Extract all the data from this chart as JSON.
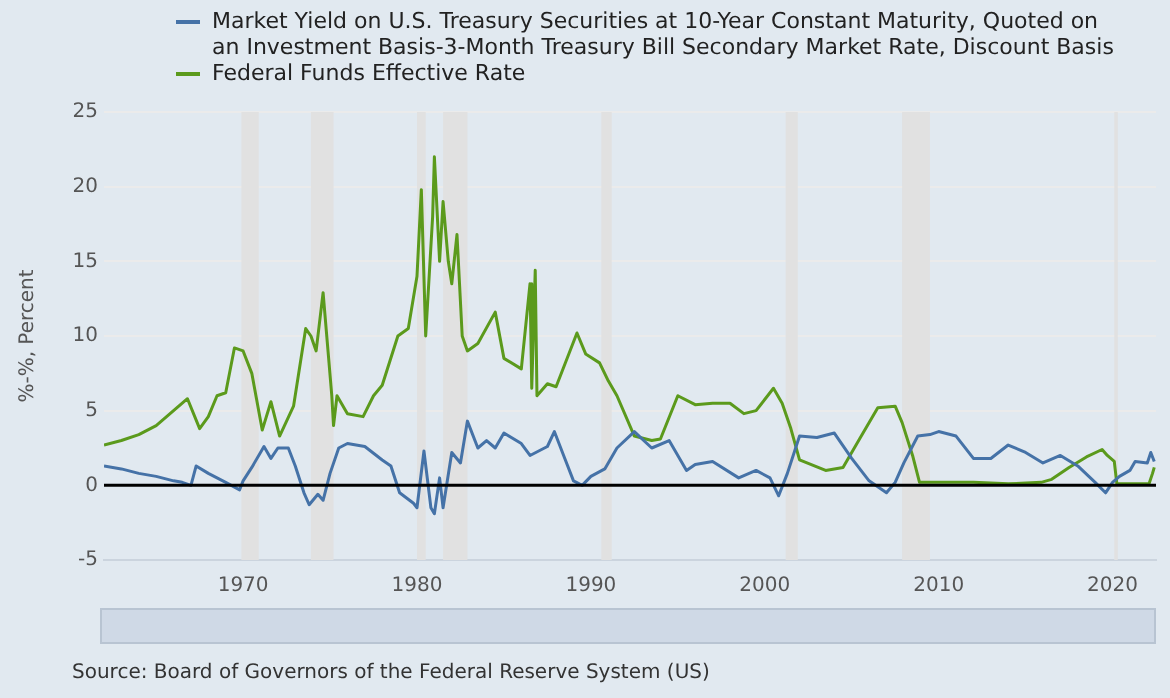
{
  "chart_data": {
    "type": "line",
    "ylabel": "%-%, Percent",
    "xlim": [
      1962,
      2022.5
    ],
    "xticks": [
      1970,
      1980,
      1990,
      2000,
      2010,
      2020
    ],
    "ylim": [
      -5,
      25
    ],
    "yticks": [
      -5,
      0,
      5,
      10,
      15,
      20,
      25
    ],
    "grid": "y",
    "legend": "top left",
    "marker": "none",
    "line_style": "solid",
    "series": [
      {
        "name": "Market Yield on U.S. Treasury Securities at 10-Year Constant Maturity, Quoted on an Investment Basis-3-Month Treasury Bill Secondary Market Rate, Discount Basis",
        "color": "#4572a7",
        "x": [
          1962,
          1963,
          1964,
          1965,
          1966,
          1966.5,
          1967,
          1967.3,
          1968,
          1969,
          1969.8,
          1970,
          1970.5,
          1971.2,
          1971.6,
          1972,
          1972.6,
          1973,
          1973.5,
          1973.8,
          1974.3,
          1974.6,
          1975,
          1975.5,
          1976,
          1977,
          1978,
          1978.5,
          1979,
          1979.8,
          1980,
          1980.4,
          1980.8,
          1981,
          1981.3,
          1981.5,
          1982,
          1982.5,
          1982.9,
          1983.5,
          1984,
          1984.5,
          1985,
          1986,
          1986.5,
          1987.5,
          1987.9,
          1988.5,
          1989,
          1989.5,
          1990,
          1990.8,
          1991.5,
          1992.5,
          1993.5,
          1994.5,
          1995.5,
          1996,
          1997,
          1998.5,
          1999.5,
          2000.3,
          2000.8,
          2001.3,
          2002,
          2003,
          2004,
          2005,
          2006,
          2007,
          2007.5,
          2008,
          2008.8,
          2009.5,
          2010,
          2011,
          2012,
          2013,
          2014,
          2015,
          2016,
          2017,
          2018,
          2019,
          2019.6,
          2020,
          2020.4,
          2021,
          2021.3,
          2022,
          2022.2,
          2022.4
        ],
        "values": [
          1.3,
          1.1,
          0.8,
          0.6,
          0.3,
          0.2,
          0.0,
          1.3,
          0.8,
          0.2,
          -0.3,
          0.3,
          1.2,
          2.6,
          1.8,
          2.5,
          2.5,
          1.3,
          -0.5,
          -1.3,
          -0.6,
          -1.0,
          0.8,
          2.5,
          2.8,
          2.6,
          1.7,
          1.3,
          -0.5,
          -1.2,
          -1.5,
          2.3,
          -1.5,
          -1.9,
          0.5,
          -1.5,
          2.2,
          1.5,
          4.3,
          2.5,
          3.0,
          2.5,
          3.5,
          2.8,
          2.0,
          2.6,
          3.6,
          1.8,
          0.3,
          0.0,
          0.6,
          1.1,
          2.5,
          3.6,
          2.5,
          3.0,
          1.0,
          1.4,
          1.6,
          0.5,
          1.0,
          0.5,
          -0.7,
          0.8,
          3.3,
          3.2,
          3.5,
          1.8,
          0.3,
          -0.5,
          0.2,
          1.5,
          3.3,
          3.4,
          3.6,
          3.3,
          1.8,
          1.8,
          2.7,
          2.2,
          1.5,
          2.0,
          1.3,
          0.2,
          -0.5,
          0.2,
          0.6,
          1.0,
          1.6,
          1.5,
          2.2,
          1.6
        ]
      },
      {
        "name": "Federal Funds Effective Rate",
        "color": "#5b9a1c",
        "x": [
          1962,
          1963,
          1964,
          1965,
          1966,
          1966.8,
          1967.5,
          1968,
          1968.5,
          1969,
          1969.5,
          1970,
          1970.5,
          1971.1,
          1971.6,
          1972.1,
          1972.9,
          1973.6,
          1973.9,
          1974.2,
          1974.6,
          1975.1,
          1975.2,
          1975.4,
          1976,
          1976.9,
          1977.5,
          1978,
          1978.9,
          1979.5,
          1980,
          1980.25,
          1980.5,
          1980.9,
          1981,
          1981.3,
          1981.5,
          1981.8,
          1982,
          1982.3,
          1982.6,
          1982.9,
          1983.5,
          1984.5,
          1985,
          1986,
          1986.5,
          1986.6,
          1986.8,
          1986.9,
          1987.5,
          1988,
          1989.2,
          1989.7,
          1990.5,
          1991,
          1991.5,
          1992.5,
          1993.5,
          1994,
          1995,
          1996,
          1997,
          1998,
          1998.8,
          1999.5,
          2000.5,
          2001,
          2001.5,
          2002,
          2003.5,
          2004.5,
          2005.5,
          2006.5,
          2007.5,
          2007.9,
          2008.5,
          2008.9,
          2010,
          2012,
          2014,
          2015.9,
          2016.5,
          2017.5,
          2018.5,
          2019.4,
          2019.7,
          2020.1,
          2020.25,
          2021,
          2022.1,
          2022.3,
          2022.4
        ],
        "values": [
          2.7,
          3.0,
          3.4,
          4.0,
          5.0,
          5.8,
          3.8,
          4.6,
          6.0,
          6.2,
          9.2,
          9.0,
          7.5,
          3.7,
          5.6,
          3.3,
          5.3,
          10.5,
          10.0,
          9.0,
          12.9,
          6.0,
          4.0,
          6.0,
          4.8,
          4.6,
          6.0,
          6.7,
          10.0,
          10.5,
          14.0,
          19.8,
          10.0,
          18.0,
          22.0,
          15.0,
          19.0,
          15.0,
          13.5,
          16.8,
          10.0,
          9.0,
          9.5,
          11.6,
          8.5,
          7.8,
          13.5,
          6.5,
          14.4,
          6.0,
          6.8,
          6.6,
          10.2,
          8.8,
          8.2,
          7.0,
          6.0,
          3.3,
          3.0,
          3.1,
          6.0,
          5.4,
          5.5,
          5.5,
          4.8,
          5.0,
          6.5,
          5.5,
          3.8,
          1.7,
          1.0,
          1.2,
          3.2,
          5.2,
          5.3,
          4.2,
          2.0,
          0.2,
          0.2,
          0.2,
          0.1,
          0.2,
          0.4,
          1.2,
          1.9,
          2.4,
          2.0,
          1.6,
          0.1,
          0.1,
          0.1,
          0.8,
          1.2
        ]
      }
    ],
    "bands": [
      {
        "axis": "x",
        "from": 1969.9,
        "to": 1970.9,
        "color": "#e1e1e1"
      },
      {
        "axis": "x",
        "from": 1973.9,
        "to": 1975.2,
        "color": "#e1e1e1"
      },
      {
        "axis": "x",
        "from": 1980.0,
        "to": 1980.5,
        "color": "#e1e1e1"
      },
      {
        "axis": "x",
        "from": 1981.5,
        "to": 1982.9,
        "color": "#e1e1e1"
      },
      {
        "axis": "x",
        "from": 1990.6,
        "to": 1991.2,
        "color": "#e1e1e1"
      },
      {
        "axis": "x",
        "from": 2001.2,
        "to": 2001.9,
        "color": "#e1e1e1"
      },
      {
        "axis": "x",
        "from": 2007.9,
        "to": 2009.5,
        "color": "#e1e1e1"
      },
      {
        "axis": "x",
        "from": 2020.1,
        "to": 2020.3,
        "color": "#e1e1e1"
      }
    ],
    "ref_lines": [
      {
        "axis": "y",
        "value": 0,
        "color": "#000000"
      }
    ],
    "annotations": [
      "Source: Board of Governors of the Federal Reserve System (US)"
    ]
  }
}
